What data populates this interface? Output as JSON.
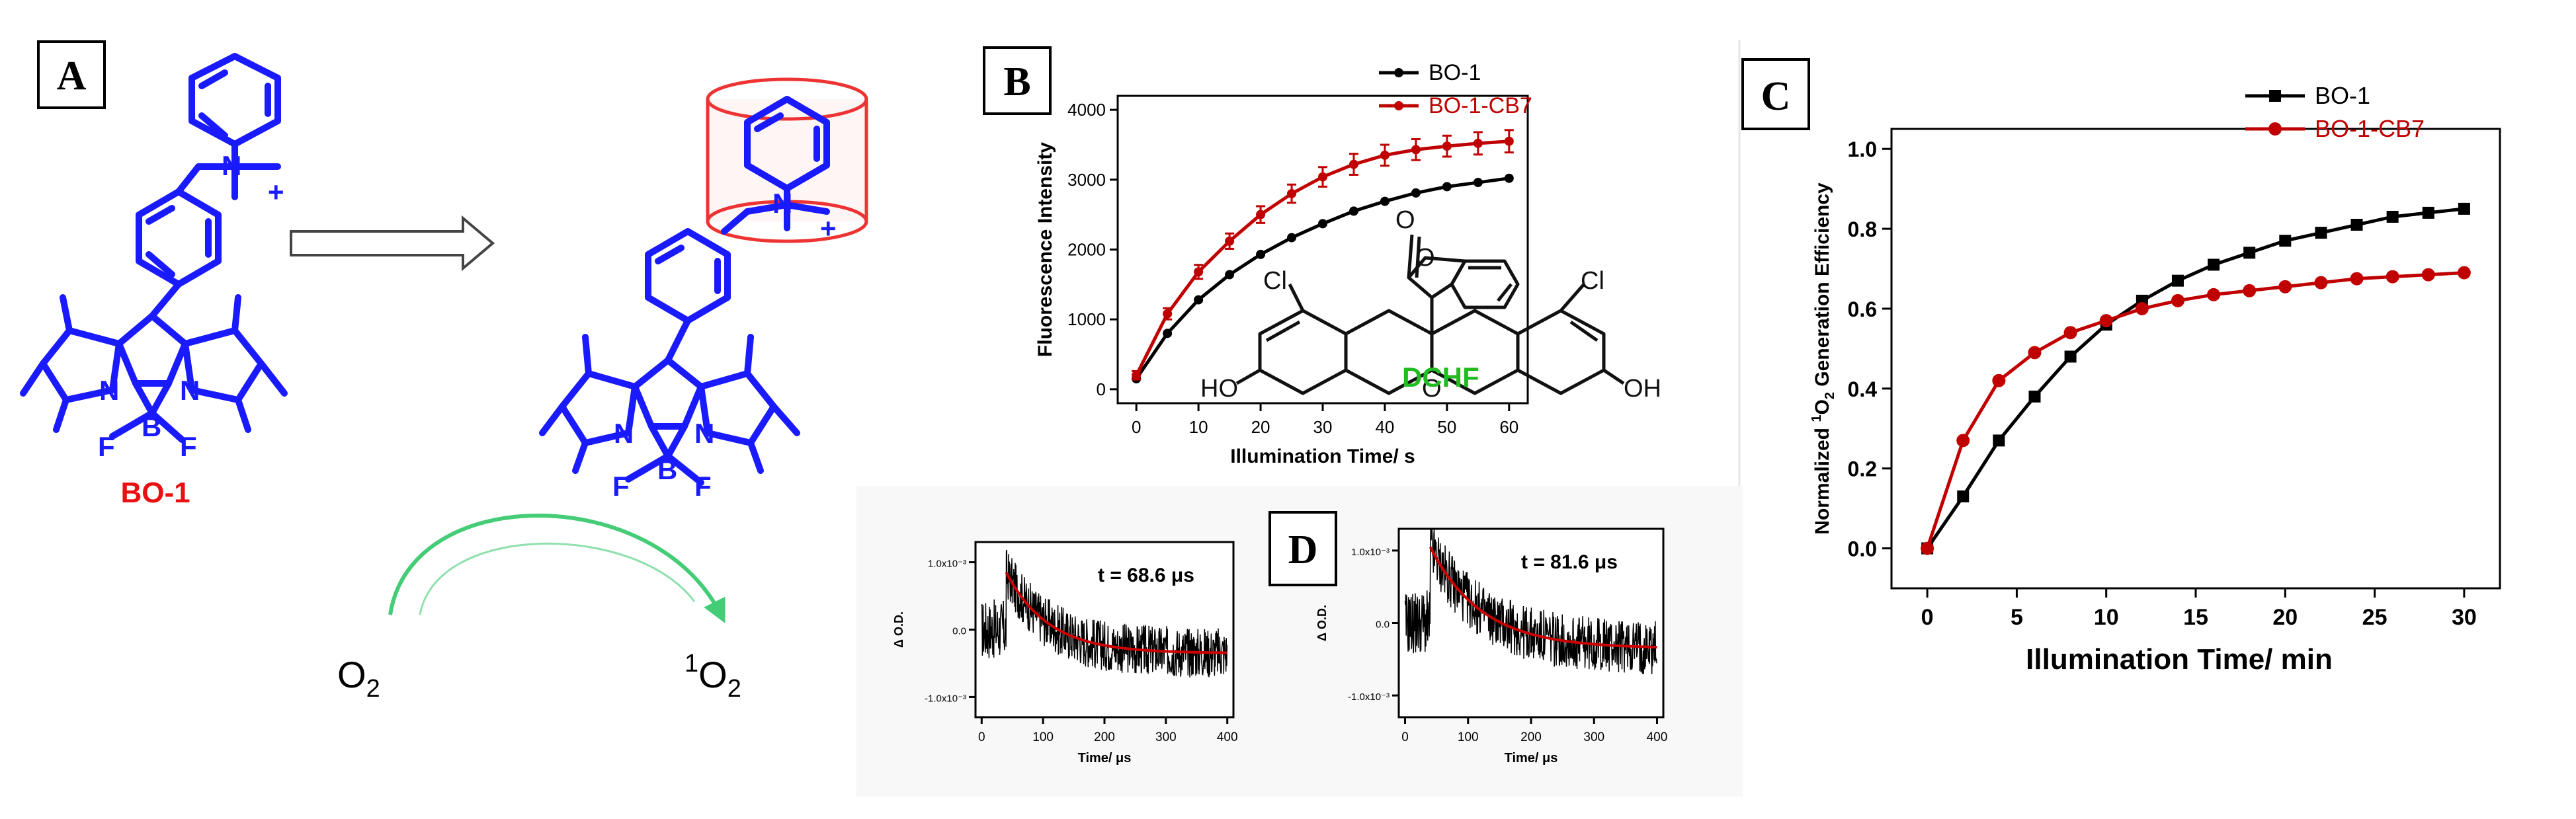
{
  "panels": {
    "a": {
      "label": "A",
      "molecule_name": "BO-1",
      "o2_left": "O",
      "o2_left_sub": "2",
      "o2_right_sup": "1",
      "o2_right": "O",
      "o2_right_sub": "2",
      "atom_n": "N",
      "atom_b": "B",
      "atom_f": "F",
      "charge_plus": "+"
    },
    "b": {
      "label": "B",
      "dye_name": "DCHF",
      "dye_atoms": {
        "o": "O",
        "cl": "Cl",
        "ho": "HO",
        "oh": "OH"
      }
    },
    "c": {
      "label": "C"
    },
    "d": {
      "label": "D"
    }
  },
  "colors": {
    "molecule_blue": "#1a1aff",
    "bo1_label_red": "#e81010",
    "series_black": "#000000",
    "series_red": "#c00000",
    "cb7_box_red": "#ee3333",
    "arrow_green": "#44cc77",
    "dchf_green": "#22bb22",
    "fit_red": "#cc0000"
  },
  "chart_data": [
    {
      "id": "B",
      "type": "line",
      "xlabel": "Illumination Time/ s",
      "ylabel": "Fluorescence Intensity",
      "xlim": [
        -3,
        63
      ],
      "ylim": [
        -200,
        4200
      ],
      "x_ticks": [
        0,
        10,
        20,
        30,
        40,
        50,
        60
      ],
      "y_ticks": [
        0,
        1000,
        2000,
        3000,
        4000
      ],
      "legend_position": "top-right",
      "x": [
        0,
        5,
        10,
        15,
        20,
        25,
        30,
        35,
        40,
        45,
        50,
        55,
        60
      ],
      "series": [
        {
          "name": "BO-1",
          "color": "#000000",
          "marker": "circle",
          "values": [
            150,
            800,
            1280,
            1640,
            1930,
            2170,
            2370,
            2550,
            2690,
            2810,
            2900,
            2960,
            3020
          ]
        },
        {
          "name": "BO-1-CB7",
          "color": "#c00000",
          "marker": "circle",
          "error_bars": true,
          "error": [
            60,
            80,
            100,
            110,
            120,
            130,
            140,
            150,
            150,
            150,
            150,
            160,
            160
          ],
          "values": [
            200,
            1080,
            1680,
            2120,
            2500,
            2800,
            3040,
            3220,
            3350,
            3430,
            3480,
            3520,
            3550
          ]
        }
      ]
    },
    {
      "id": "C",
      "type": "line",
      "xlabel": "Illumination Time/ min",
      "ylabel_prefix": "Normalized ",
      "ylabel_sup": "1",
      "ylabel_mid": "O",
      "ylabel_sub": "2",
      "ylabel_suffix": " Generation Efficiency",
      "xlim": [
        -2,
        32
      ],
      "ylim": [
        -0.1,
        1.05
      ],
      "x_ticks": [
        0,
        5,
        10,
        15,
        20,
        25,
        30
      ],
      "y_ticks": [
        "0.0",
        "0.2",
        "0.4",
        "0.6",
        "0.8",
        "1.0"
      ],
      "legend_position": "top-right",
      "x": [
        0,
        2,
        4,
        6,
        8,
        10,
        12,
        14,
        16,
        18,
        20,
        22,
        24,
        26,
        28,
        30
      ],
      "series": [
        {
          "name": "BO-1",
          "color": "#000000",
          "marker": "square",
          "values": [
            0.0,
            0.13,
            0.27,
            0.38,
            0.48,
            0.56,
            0.62,
            0.67,
            0.71,
            0.74,
            0.77,
            0.79,
            0.81,
            0.83,
            0.84,
            0.85
          ]
        },
        {
          "name": "BO-1-CB7",
          "color": "#c00000",
          "marker": "circle",
          "values": [
            0.0,
            0.27,
            0.42,
            0.49,
            0.54,
            0.57,
            0.6,
            0.62,
            0.635,
            0.645,
            0.655,
            0.665,
            0.675,
            0.68,
            0.685,
            0.69
          ]
        }
      ]
    },
    {
      "id": "D1",
      "type": "line",
      "xlabel": "Time/ μs",
      "ylabel": "Δ O.D.",
      "annotation": "t = 68.6 μs",
      "tau": 68.6,
      "xlim": [
        -10,
        410
      ],
      "ylim": [
        -1.3,
        1.3
      ],
      "x_ticks": [
        0,
        100,
        200,
        300,
        400
      ],
      "y_tick_values": [
        -1,
        0,
        1
      ],
      "y_tick_labels": [
        "-1.0x10⁻³",
        "0.0",
        "1.0x10⁻³"
      ],
      "onset": 40,
      "peak": 0.85,
      "baseline": -0.35
    },
    {
      "id": "D2",
      "type": "line",
      "xlabel": "Time/ μs",
      "ylabel": "Δ O.D.",
      "annotation": "t = 81.6 μs",
      "tau": 81.6,
      "xlim": [
        -10,
        410
      ],
      "ylim": [
        -1.3,
        1.3
      ],
      "x_ticks": [
        0,
        100,
        200,
        300,
        400
      ],
      "y_tick_values": [
        -1,
        0,
        1
      ],
      "y_tick_labels": [
        "-1.0x10⁻³",
        "0.0",
        "1.0x10⁻³"
      ],
      "onset": 40,
      "peak": 1.05,
      "baseline": -0.35
    }
  ]
}
